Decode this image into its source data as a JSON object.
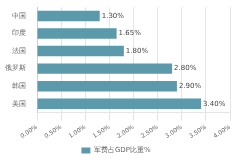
{
  "chart_data": {
    "type": "bar",
    "orientation": "horizontal",
    "categories": [
      "中国",
      "印度",
      "法国",
      "俄罗斯",
      "韩国",
      "美国"
    ],
    "series": [
      {
        "name": "军费占GDP比重%",
        "color": "#5a9aaa",
        "values": [
          1.3,
          1.65,
          1.8,
          2.8,
          2.9,
          3.4
        ],
        "value_labels": [
          "1.30%",
          "1.65%",
          "1.80%",
          "2.80%",
          "2.90%",
          "3.40%"
        ]
      }
    ],
    "data_labels": true,
    "xlim": [
      0,
      4.0
    ],
    "xticks": [
      {
        "value": 0.0,
        "label": "0.00%"
      },
      {
        "value": 0.5,
        "label": "0.50%"
      },
      {
        "value": 1.0,
        "label": "1.00%"
      },
      {
        "value": 1.5,
        "label": "1.50%"
      },
      {
        "value": 2.0,
        "label": "2.00%"
      },
      {
        "value": 2.5,
        "label": "2.50%"
      },
      {
        "value": 3.0,
        "label": "3.00%"
      },
      {
        "value": 3.5,
        "label": "3.50%"
      },
      {
        "value": 4.0,
        "label": "4.00%"
      }
    ],
    "grid": true,
    "legend": "bottom"
  }
}
